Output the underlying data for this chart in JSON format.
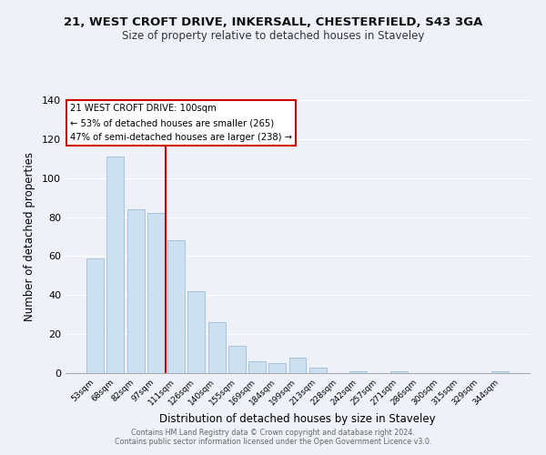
{
  "title": "21, WEST CROFT DRIVE, INKERSALL, CHESTERFIELD, S43 3GA",
  "subtitle": "Size of property relative to detached houses in Staveley",
  "xlabel": "Distribution of detached houses by size in Staveley",
  "ylabel": "Number of detached properties",
  "bar_labels": [
    "53sqm",
    "68sqm",
    "82sqm",
    "97sqm",
    "111sqm",
    "126sqm",
    "140sqm",
    "155sqm",
    "169sqm",
    "184sqm",
    "199sqm",
    "213sqm",
    "228sqm",
    "242sqm",
    "257sqm",
    "271sqm",
    "286sqm",
    "300sqm",
    "315sqm",
    "329sqm",
    "344sqm"
  ],
  "bar_values": [
    59,
    111,
    84,
    82,
    68,
    42,
    26,
    14,
    6,
    5,
    8,
    3,
    0,
    1,
    0,
    1,
    0,
    0,
    0,
    0,
    1
  ],
  "bar_color": "#cde0f0",
  "bar_edge_color": "#a0bcd8",
  "vline_color": "#cc0000",
  "annotation_title": "21 WEST CROFT DRIVE: 100sqm",
  "annotation_line1": "← 53% of detached houses are smaller (265)",
  "annotation_line2": "47% of semi-detached houses are larger (238) →",
  "annotation_box_facecolor": "#ffffff",
  "annotation_box_edgecolor": "#cc0000",
  "ylim": [
    0,
    140
  ],
  "yticks": [
    0,
    20,
    40,
    60,
    80,
    100,
    120,
    140
  ],
  "bg_color": "#eef2f8",
  "grid_color": "#ffffff",
  "footer1": "Contains HM Land Registry data © Crown copyright and database right 2024.",
  "footer2": "Contains public sector information licensed under the Open Government Licence v3.0."
}
